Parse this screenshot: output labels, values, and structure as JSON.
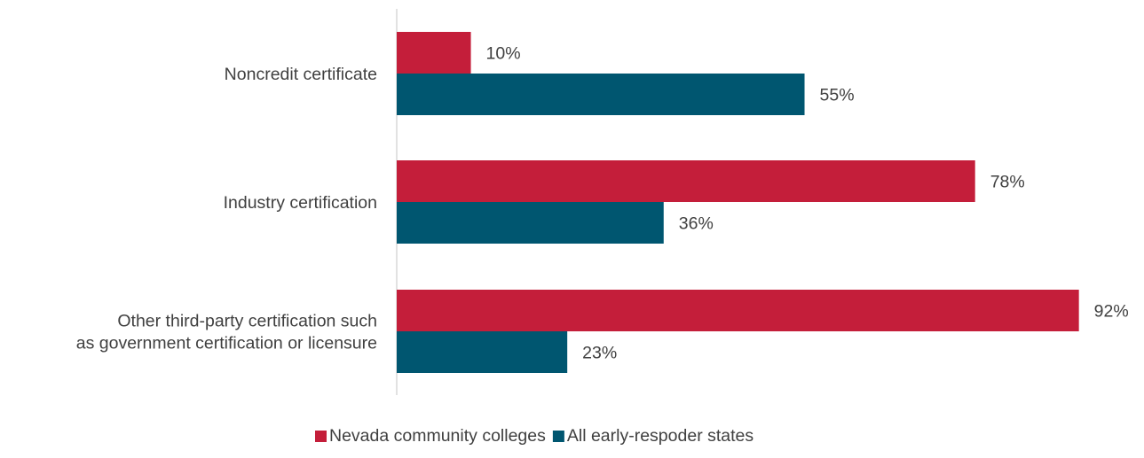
{
  "chart_data": {
    "type": "bar",
    "orientation": "horizontal",
    "title": "",
    "xlabel": "",
    "ylabel": "",
    "categories": [
      [
        "Noncredit certificate"
      ],
      [
        "Industry certification"
      ],
      [
        "Other third-party certification such",
        "as government certification or licensure"
      ]
    ],
    "series": [
      {
        "name": "Nevada community colleges",
        "color": "#C41E3A",
        "values": [
          10,
          78,
          92
        ],
        "labels": [
          "10%",
          "78%",
          "92%"
        ]
      },
      {
        "name": "All early-respoder states",
        "color": "#005670",
        "values": [
          55,
          36,
          23
        ],
        "labels": [
          "55%",
          "36%",
          "23%"
        ]
      }
    ],
    "xlim": [
      0,
      100
    ],
    "grid": false,
    "axis_line_color": "#D9D9D9",
    "legend": {
      "position": "bottom"
    }
  }
}
